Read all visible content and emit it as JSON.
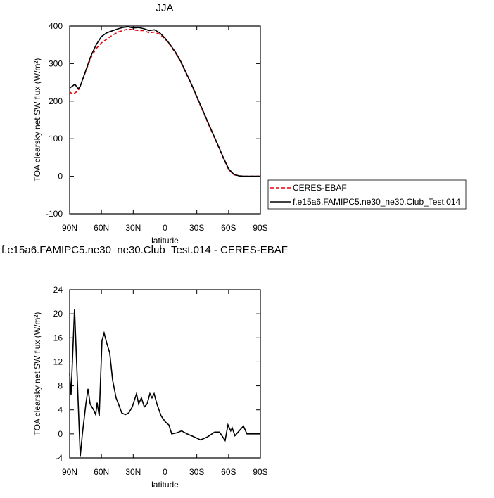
{
  "chart_data": [
    {
      "type": "line",
      "title": "JJA",
      "xlabel": "latitude",
      "ylabel": "TOA clearsky net SW flux (W/m²)",
      "xlim": [
        90,
        -90
      ],
      "ylim": [
        -100,
        400
      ],
      "xticks": [
        {
          "value": 90,
          "label": "90N"
        },
        {
          "value": 60,
          "label": "60N"
        },
        {
          "value": 30,
          "label": "30N"
        },
        0,
        {
          "value": -30,
          "label": "30S"
        },
        {
          "value": -60,
          "label": "60S"
        },
        {
          "value": -90,
          "label": "90S"
        }
      ],
      "yticks": [
        -100,
        0,
        100,
        200,
        300,
        400
      ],
      "legend": "right",
      "x": [
        90,
        87,
        85,
        82,
        80,
        75,
        70,
        65,
        60,
        55,
        50,
        45,
        40,
        35,
        30,
        25,
        20,
        15,
        10,
        5,
        0,
        -5,
        -10,
        -15,
        -20,
        -25,
        -30,
        -35,
        -40,
        -45,
        -50,
        -55,
        -60,
        -65,
        -70,
        -75,
        -80,
        -85,
        -90
      ],
      "series": [
        {
          "name": "CERES-EBAF",
          "color": "#e8000b",
          "style": "dashed",
          "values": [
            225,
            218,
            222,
            228,
            240,
            278,
            315,
            340,
            355,
            365,
            375,
            383,
            388,
            392,
            390,
            388,
            388,
            382,
            384,
            378,
            366,
            348,
            328,
            303,
            273,
            243,
            210,
            178,
            145,
            113,
            81,
            48,
            18,
            4,
            1,
            0,
            0,
            0,
            0
          ]
        },
        {
          "name": "f.e15a6.FAMIPC5.ne30_ne30.Club_Test.014",
          "color": "#000000",
          "style": "solid",
          "values": [
            235,
            241,
            245,
            233,
            240,
            280,
            320,
            350,
            372,
            382,
            387,
            392,
            396,
            398,
            395,
            396,
            393,
            388,
            390,
            382,
            368,
            350,
            330,
            305,
            275,
            245,
            212,
            180,
            147,
            115,
            83,
            50,
            20,
            5,
            1,
            0,
            0,
            0,
            0
          ]
        }
      ]
    },
    {
      "type": "line",
      "title": "f.e15a6.FAMIPC5.ne30_ne30.Club_Test.014 - CERES-EBAF",
      "xlabel": "latitude",
      "ylabel": "TOA clearsky net SW flux (W/m²)",
      "xlim": [
        90,
        -90
      ],
      "ylim": [
        -4,
        24
      ],
      "xticks": [
        {
          "value": 90,
          "label": "90N"
        },
        {
          "value": 60,
          "label": "60N"
        },
        {
          "value": 30,
          "label": "30N"
        },
        0,
        {
          "value": -30,
          "label": "30S"
        },
        {
          "value": -60,
          "label": "60S"
        },
        {
          "value": -90,
          "label": "90S"
        }
      ],
      "yticks": [
        -4,
        0,
        4,
        8,
        12,
        16,
        20,
        24
      ],
      "x": [
        90,
        88.7,
        85.4,
        80,
        78,
        74.7,
        72.7,
        70.7,
        67.4,
        65.4,
        64.1,
        62.1,
        59.5,
        57.5,
        54.8,
        52.2,
        49.5,
        46.2,
        42.9,
        40.9,
        37.5,
        34.2,
        30.9,
        26.9,
        24.9,
        22.3,
        19.6,
        16.9,
        14.3,
        12.3,
        10.3,
        7.7,
        3.7,
        -0.3,
        -3.6,
        -6.3,
        -11.6,
        -15.6,
        -20.9,
        -27.5,
        -33.5,
        -40.1,
        -46.8,
        -51.4,
        -56.7,
        -59.4,
        -62,
        -63.4,
        -66,
        -70,
        -74,
        -77.3,
        -90
      ],
      "series": [
        {
          "name": null,
          "color": "#000000",
          "style": "solid",
          "values": [
            10,
            6.5,
            20.8,
            -3.7,
            0,
            5,
            7.5,
            5,
            4,
            3.2,
            5.2,
            3,
            15.5,
            16.8,
            15,
            13.5,
            9,
            6,
            4.5,
            3.5,
            3.2,
            3.5,
            4.5,
            6.7,
            5,
            6,
            4.5,
            5,
            6.7,
            6,
            6.7,
            5,
            3,
            2,
            1.5,
            0,
            0.2,
            0.5,
            0,
            -0.5,
            -1,
            -0.5,
            0.3,
            0.3,
            -1.1,
            1.5,
            0.5,
            1,
            -0.3,
            0.5,
            1.3,
            0,
            0
          ]
        }
      ]
    }
  ]
}
